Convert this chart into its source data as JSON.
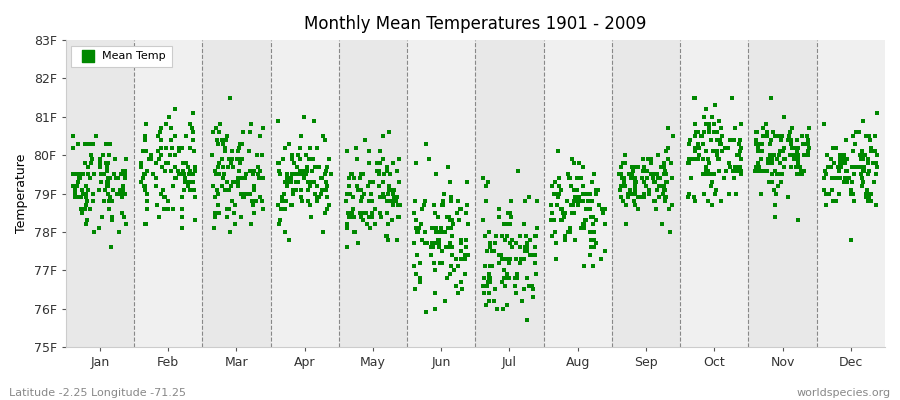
{
  "title": "Monthly Mean Temperatures 1901 - 2009",
  "ylabel": "Temperature",
  "xlabel_footer_left": "Latitude -2.25 Longitude -71.25",
  "xlabel_footer_right": "worldspecies.org",
  "months": [
    "Jan",
    "Feb",
    "Mar",
    "Apr",
    "May",
    "Jun",
    "Jul",
    "Aug",
    "Sep",
    "Oct",
    "Nov",
    "Dec"
  ],
  "ylim": [
    75,
    83
  ],
  "ytick_labels": [
    "75F",
    "76F",
    "77F",
    "78F",
    "79F",
    "80F",
    "81F",
    "82F",
    "83F"
  ],
  "ytick_values": [
    75,
    76,
    77,
    78,
    79,
    80,
    81,
    82,
    83
  ],
  "plot_bg_color": "#efefef",
  "col_colors": [
    "#e8e8e8",
    "#f0f0f0"
  ],
  "marker_color": "#008800",
  "marker": "s",
  "marker_size": 3,
  "n_years": 109,
  "seed": 42,
  "monthly_means": [
    79.3,
    79.5,
    79.5,
    79.4,
    78.8,
    77.8,
    77.4,
    78.6,
    79.3,
    80.0,
    80.0,
    79.7
  ],
  "monthly_stds": [
    0.65,
    0.7,
    0.65,
    0.6,
    0.7,
    0.85,
    0.85,
    0.65,
    0.45,
    0.55,
    0.55,
    0.55
  ],
  "legend_marker_size": 8
}
